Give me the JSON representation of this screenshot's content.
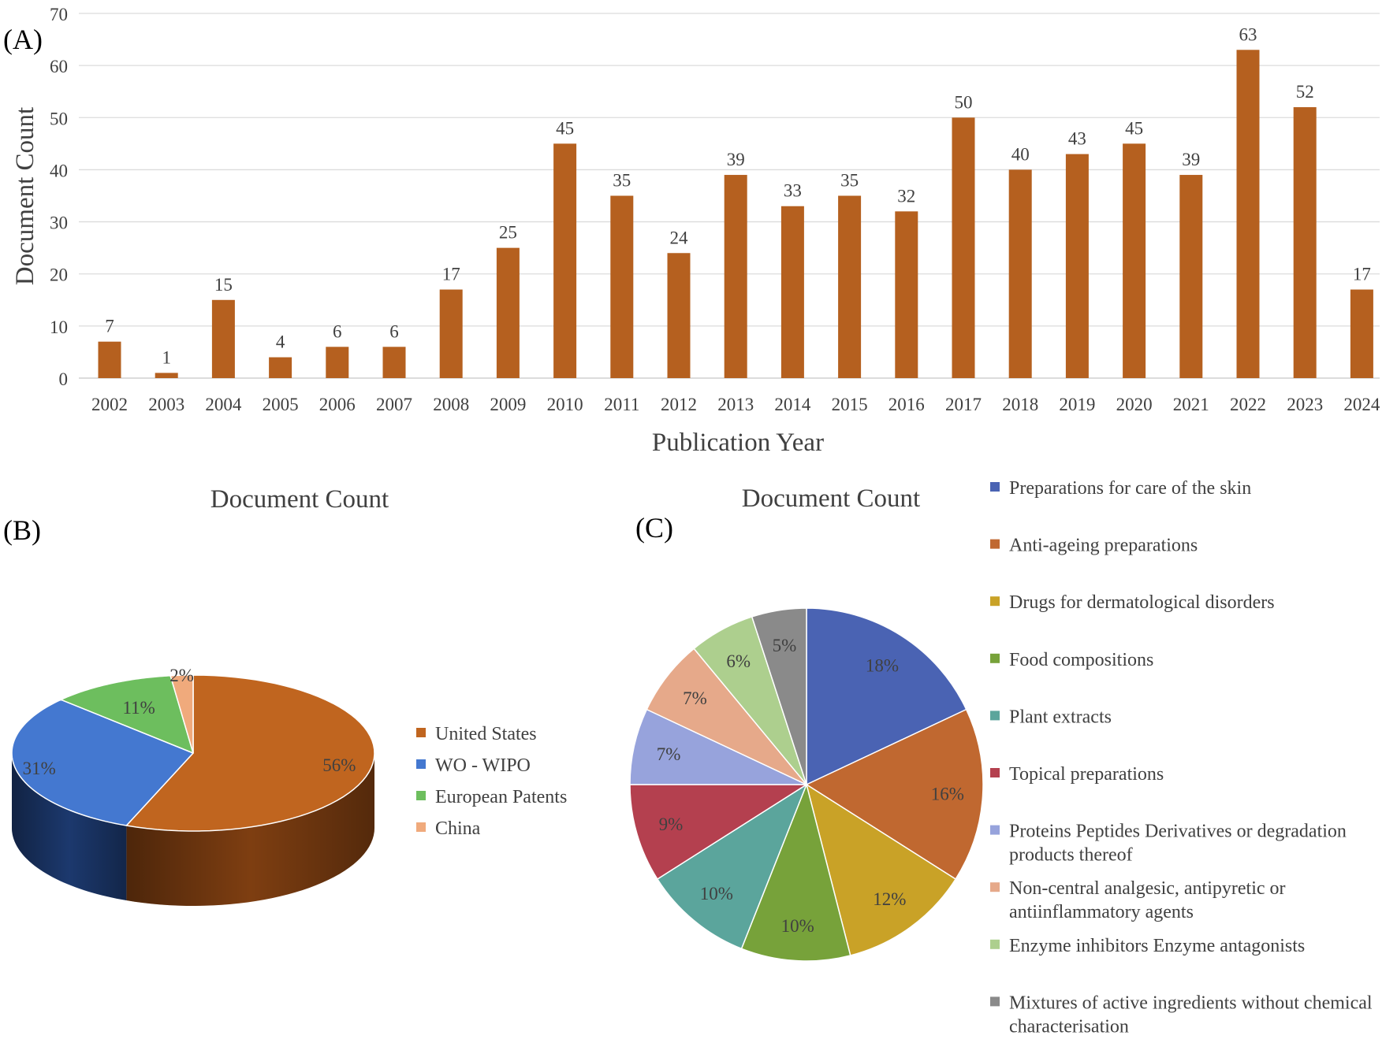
{
  "chart_data": [
    {
      "panel": "(A)",
      "type": "bar",
      "title": "",
      "xlabel": "Publication Year",
      "ylabel": "Document Count",
      "ylim": [
        0,
        70
      ],
      "yticks": [
        0,
        10,
        20,
        30,
        40,
        50,
        60,
        70
      ],
      "grid": true,
      "bar_color": "#B5601F",
      "categories": [
        "2002",
        "2003",
        "2004",
        "2005",
        "2006",
        "2007",
        "2008",
        "2009",
        "2010",
        "2011",
        "2012",
        "2013",
        "2014",
        "2015",
        "2016",
        "2017",
        "2018",
        "2019",
        "2020",
        "2021",
        "2022",
        "2023",
        "2024"
      ],
      "values": [
        7,
        1,
        15,
        4,
        6,
        6,
        17,
        25,
        45,
        35,
        24,
        39,
        33,
        35,
        32,
        50,
        40,
        43,
        45,
        39,
        63,
        52,
        17
      ]
    },
    {
      "panel": "(B)",
      "type": "pie",
      "style": "3d",
      "title": "Document Count",
      "legend_position": "right",
      "slices": [
        {
          "label": "United States",
          "value": 56,
          "display": "56%",
          "color": "#C0651F",
          "side_color": "#8C4513"
        },
        {
          "label": "WO - WIPO",
          "value": 31,
          "display": "31%",
          "color": "#4478D0",
          "side_color": "#1F3F7A"
        },
        {
          "label": "European Patents",
          "value": 11,
          "display": "11%",
          "color": "#6DBE5E",
          "side_color": "#3F7A33"
        },
        {
          "label": "China",
          "value": 2,
          "display": "2%",
          "color": "#F0AA7C",
          "side_color": "#B07550"
        }
      ]
    },
    {
      "panel": "(C)",
      "type": "pie",
      "title": "Document Count",
      "legend_position": "right",
      "slices": [
        {
          "label": "Preparations for care of the skin",
          "value": 18,
          "display": "18%",
          "color": "#4A63B3"
        },
        {
          "label": "Anti-ageing preparations",
          "value": 16,
          "display": "16%",
          "color": "#C06830"
        },
        {
          "label": "Drugs for dermatological disorders",
          "value": 12,
          "display": "12%",
          "color": "#C9A227"
        },
        {
          "label": "Food compositions",
          "value": 10,
          "display": "10%",
          "color": "#77A23A"
        },
        {
          "label": "Plant extracts",
          "value": 10,
          "display": "10%",
          "color": "#5BA59C"
        },
        {
          "label": "Topical preparations",
          "value": 9,
          "display": "9%",
          "color": "#B4404F"
        },
        {
          "label": "Proteins Peptides Derivatives or degradation products thereof",
          "lines": [
            "Proteins Peptides Derivatives or degradation",
            "products thereof"
          ],
          "value": 7,
          "display": "7%",
          "color": "#97A3DC"
        },
        {
          "label": "Non-central analgesic, antipyretic or antiinflammatory agents",
          "lines": [
            "Non-central analgesic, antipyretic or",
            "antiinflammatory agents"
          ],
          "value": 7,
          "display": "7%",
          "color": "#E6A98A"
        },
        {
          "label": "Enzyme inhibitors Enzyme antagonists",
          "value": 6,
          "display": "6%",
          "color": "#ADCF8E"
        },
        {
          "label": "Mixtures of active ingredients without chemical characterisation",
          "lines": [
            "Mixtures of active ingredients without chemical",
            "characterisation"
          ],
          "value": 5,
          "display": "5%",
          "color": "#8A8A8A"
        }
      ]
    }
  ]
}
